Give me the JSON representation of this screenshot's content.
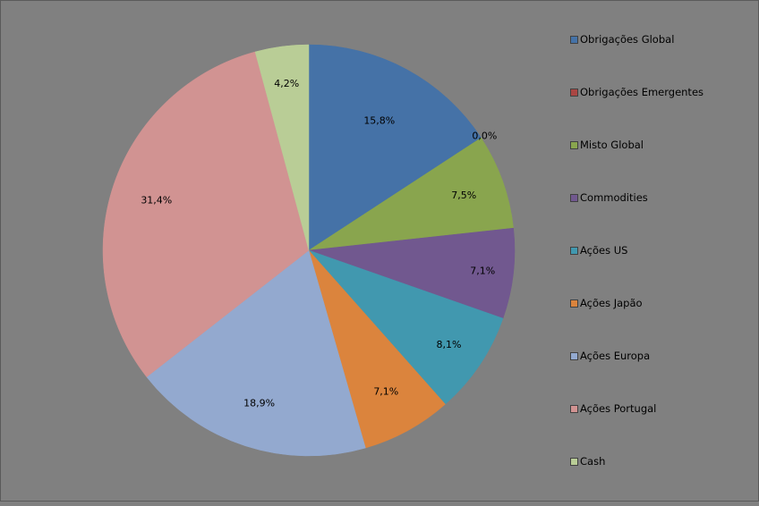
{
  "chart_data": {
    "type": "pie",
    "categories": [
      "Obrigações Global",
      "Obrigações Emergentes",
      "Misto Global",
      "Commodities",
      "Ações US",
      "Ações Japão",
      "Ações Europa",
      "Ações Portugal",
      "Cash"
    ],
    "values": [
      15.8,
      0.0,
      7.5,
      7.1,
      8.1,
      7.1,
      18.9,
      31.4,
      4.2
    ],
    "data_labels": [
      "15,8%",
      "0,0%",
      "7,5%",
      "7,1%",
      "8,1%",
      "7,1%",
      "18,9%",
      "31,4%",
      "4,2%"
    ],
    "colors": [
      "#4572A7",
      "#AA4643",
      "#89A54E",
      "#71588F",
      "#4198AF",
      "#DB843D",
      "#93A9CF",
      "#D19392",
      "#B9CD96"
    ],
    "legend_position": "right",
    "title": ""
  }
}
